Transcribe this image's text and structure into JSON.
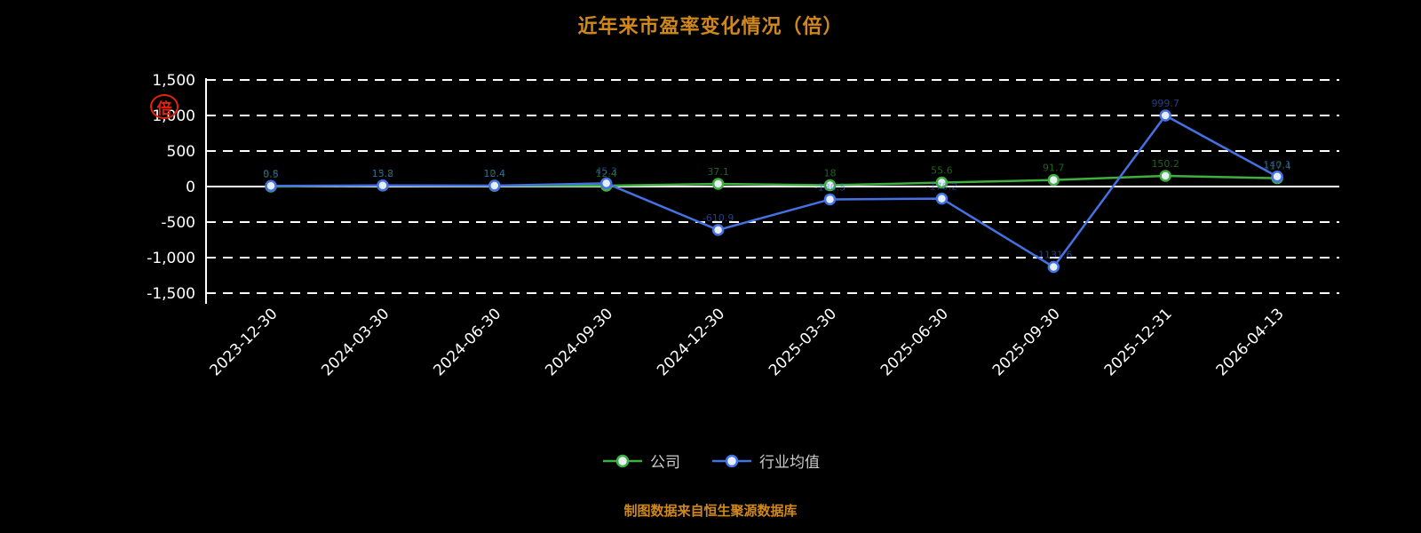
{
  "chart_data": {
    "type": "line",
    "title": "近年来市盈率变化情况（倍）",
    "unit_annotation": "倍",
    "categories": [
      "2023-12-30",
      "2024-03-30",
      "2024-06-30",
      "2024-09-30",
      "2024-12-30",
      "2025-03-30",
      "2025-06-30",
      "2025-09-30",
      "2025-12-31",
      "2026-04-13"
    ],
    "series": [
      {
        "id": "company",
        "name": "公司",
        "color": "#3faf3f",
        "values": [
          0.5,
          13.8,
          10.4,
          12.4,
          37.1,
          18.0,
          55.6,
          91.7,
          150.2,
          117.4
        ]
      },
      {
        "id": "industry",
        "name": "行业均值",
        "color": "#4472e4",
        "values": [
          9.8,
          15.2,
          12.4,
          45.3,
          -610.9,
          -180.5,
          -170.2,
          -1131.6,
          999.7,
          140.1
        ]
      }
    ],
    "y_ticks": [
      {
        "value": 1500,
        "label": "1,500"
      },
      {
        "value": 1000,
        "label": "1,000"
      },
      {
        "value": 500,
        "label": "500"
      },
      {
        "value": 0,
        "label": "0"
      },
      {
        "value": -500,
        "label": "-500"
      },
      {
        "value": -1000,
        "label": "-1,000"
      },
      {
        "value": -1500,
        "label": "-1,500"
      }
    ],
    "ylim": [
      -1500,
      1500
    ],
    "grid": "dashed-horizontal",
    "legend_position": "bottom",
    "colors": {
      "background": "#000000",
      "title": "#d0881c",
      "axis_text": "#ffffff",
      "grid": "#ffffff",
      "legend_text": "#cccccc",
      "annotation": "#e82010"
    }
  },
  "footer": {
    "note": "制图数据来自恒生聚源数据库"
  }
}
